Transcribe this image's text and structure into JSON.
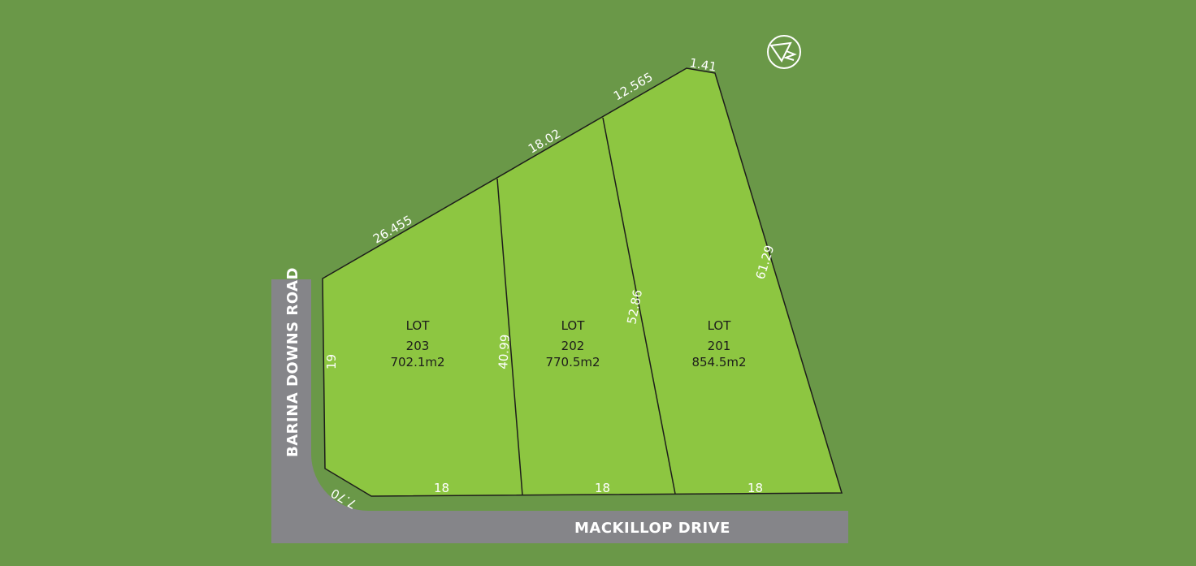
{
  "colors": {
    "background": "#6a9848",
    "lot": "#8dc641",
    "road": "#858589",
    "line": "#1d1d1b",
    "text_light": "#ffffff"
  },
  "north_arrow": {
    "icon": "north-arrow-icon"
  },
  "roads": {
    "vertical": "BARINA DOWNS ROAD",
    "horizontal": "MACKILLOP DRIVE"
  },
  "dimensions": {
    "top_1": "26.455",
    "top_2": "18.02",
    "top_3": "12.565",
    "top_4": "1.41",
    "right": "61.29",
    "div_1": "40.99",
    "div_2": "52.86",
    "left": "19",
    "corner": "7.70",
    "front_203": "18",
    "front_202": "18",
    "front_201": "18"
  },
  "lots": [
    {
      "label": "LOT",
      "number": "203",
      "area": "702.1m2"
    },
    {
      "label": "LOT",
      "number": "202",
      "area": "770.5m2"
    },
    {
      "label": "LOT",
      "number": "201",
      "area": "854.5m2"
    }
  ]
}
